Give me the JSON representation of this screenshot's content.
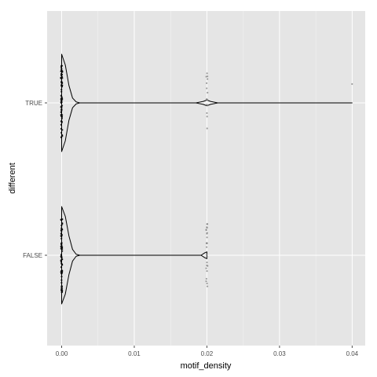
{
  "chart_data": {
    "type": "violin",
    "xlabel": "motif_density",
    "ylabel": "different",
    "xlim": [
      -0.002,
      0.0418
    ],
    "x_ticks": [
      {
        "value": 0.0,
        "label": "0.00"
      },
      {
        "value": 0.01,
        "label": "0.01"
      },
      {
        "value": 0.02,
        "label": "0.02"
      },
      {
        "value": 0.03,
        "label": "0.03"
      },
      {
        "value": 0.04,
        "label": "0.04"
      }
    ],
    "categories": [
      "TRUE",
      "FALSE"
    ],
    "grid": true,
    "legend": "none",
    "background": "#e5e5e5",
    "grid_color": "#ffffff",
    "series": [
      {
        "category": "TRUE",
        "x_min": 0.0,
        "x_max": 0.04,
        "density_profile": [
          {
            "x": 0.0,
            "w": 1.0
          },
          {
            "x": 0.0005,
            "w": 0.78
          },
          {
            "x": 0.001,
            "w": 0.36
          },
          {
            "x": 0.0015,
            "w": 0.1
          },
          {
            "x": 0.002,
            "w": 0.02
          },
          {
            "x": 0.0025,
            "w": 0.0
          },
          {
            "x": 0.0185,
            "w": 0.0
          },
          {
            "x": 0.0195,
            "w": 0.03
          },
          {
            "x": 0.02,
            "w": 0.06
          },
          {
            "x": 0.0205,
            "w": 0.03
          },
          {
            "x": 0.0215,
            "w": 0.0
          },
          {
            "x": 0.04,
            "w": 0.0
          }
        ],
        "points": [
          {
            "x": 0.0,
            "n": 70
          },
          {
            "x": 0.02,
            "n": 14
          },
          {
            "x": 0.04,
            "n": 1
          }
        ]
      },
      {
        "category": "FALSE",
        "x_min": 0.0,
        "x_max": 0.02,
        "density_profile": [
          {
            "x": 0.0,
            "w": 1.0
          },
          {
            "x": 0.0005,
            "w": 0.8
          },
          {
            "x": 0.001,
            "w": 0.4
          },
          {
            "x": 0.0015,
            "w": 0.12
          },
          {
            "x": 0.002,
            "w": 0.02
          },
          {
            "x": 0.0025,
            "w": 0.0
          },
          {
            "x": 0.0192,
            "w": 0.0
          },
          {
            "x": 0.0197,
            "w": 0.05
          },
          {
            "x": 0.02,
            "w": 0.07
          }
        ],
        "points": [
          {
            "x": 0.0,
            "n": 70
          },
          {
            "x": 0.02,
            "n": 24
          }
        ]
      }
    ]
  }
}
